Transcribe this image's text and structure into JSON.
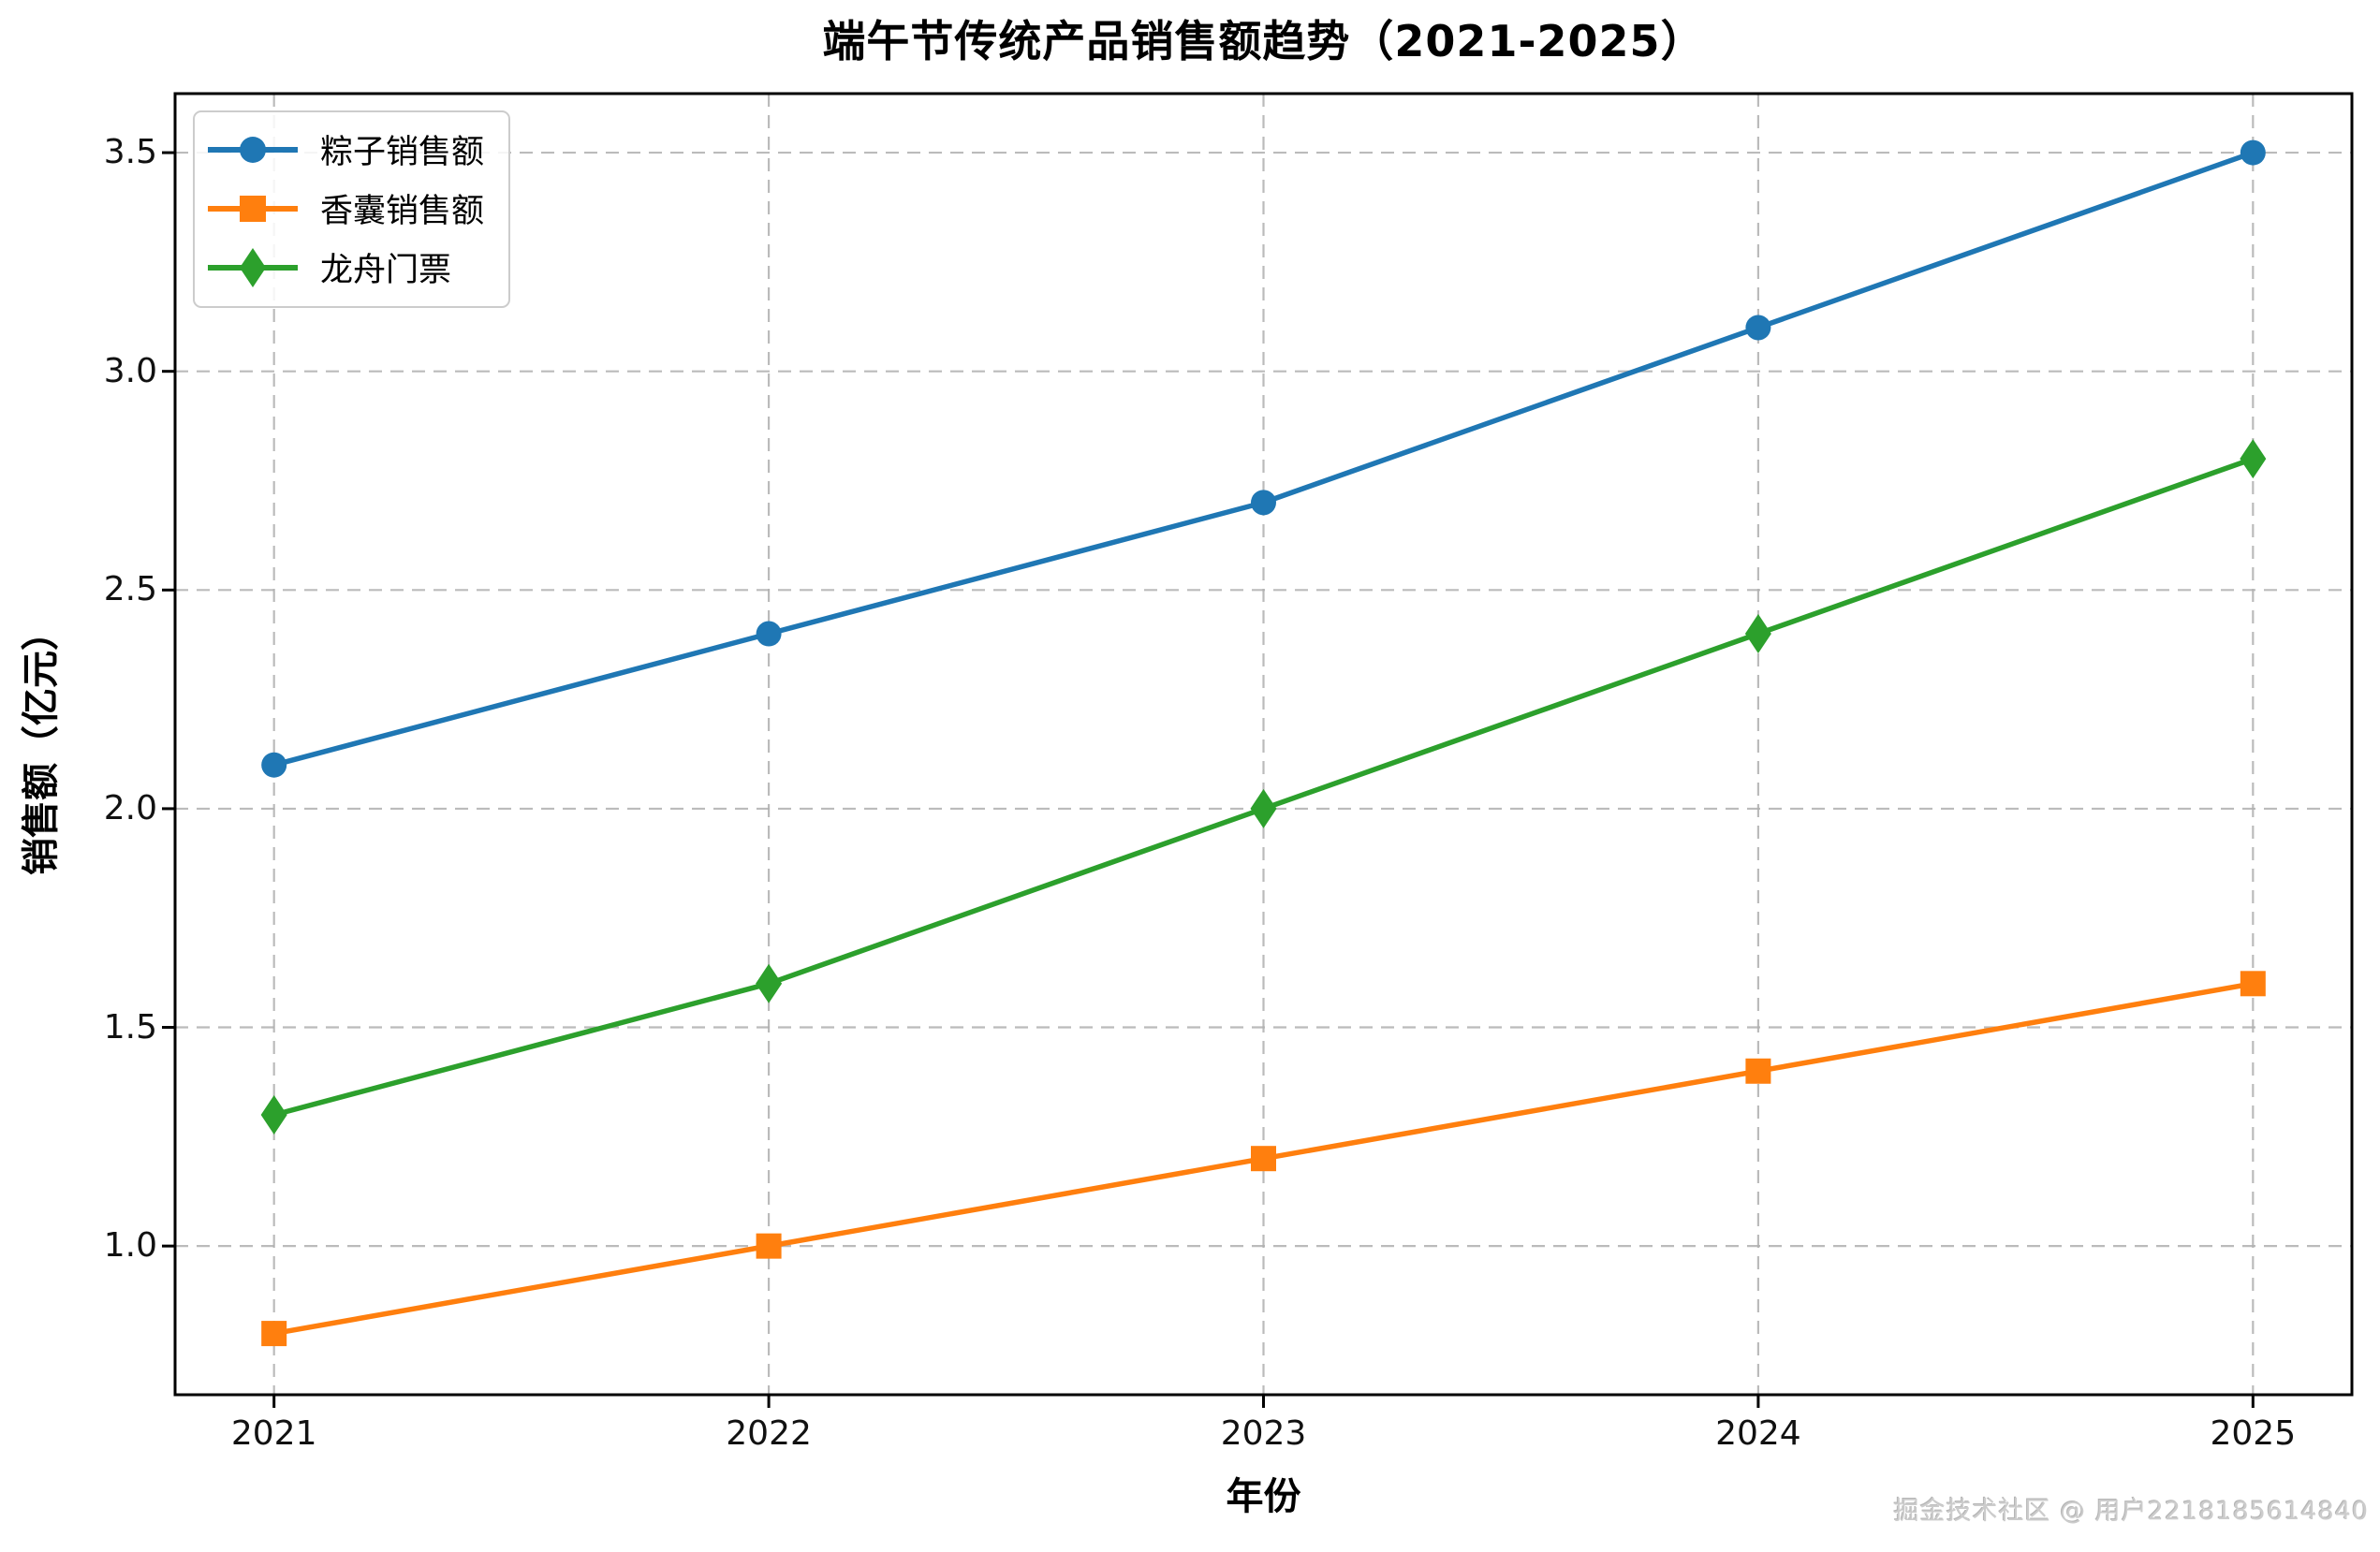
{
  "title": "端午节传统产品销售额趋势（2021-2025）",
  "watermark": "掘金技术社区 @ 用户2218185614840",
  "chart_data": {
    "type": "line",
    "title": "端午节传统产品销售额趋势（2021-2025）",
    "xlabel": "年份",
    "ylabel": "销售额（亿元）",
    "x": [
      2021,
      2022,
      2023,
      2024,
      2025
    ],
    "series": [
      {
        "name": "粽子销售额",
        "color": "#1f77b4",
        "marker": "circle",
        "values": [
          2.1,
          2.4,
          2.7,
          3.1,
          3.5
        ]
      },
      {
        "name": "香囊销售额",
        "color": "#ff7f0e",
        "marker": "square",
        "values": [
          0.8,
          1.0,
          1.2,
          1.4,
          1.6
        ]
      },
      {
        "name": "龙舟门票",
        "color": "#2ca02c",
        "marker": "diamond",
        "values": [
          1.3,
          1.6,
          2.0,
          2.4,
          2.8
        ]
      }
    ],
    "yticks": [
      1.0,
      1.5,
      2.0,
      2.5,
      3.0,
      3.5
    ],
    "xticks": [
      2021,
      2022,
      2023,
      2024,
      2025
    ],
    "ylim": [
      0.66,
      3.635
    ],
    "xlim": [
      2020.8,
      2025.2
    ],
    "grid": true,
    "grid_style": "dashed",
    "grid_color": "#b0b0b0",
    "legend_position": "upper left",
    "spine_color": "#000000"
  }
}
